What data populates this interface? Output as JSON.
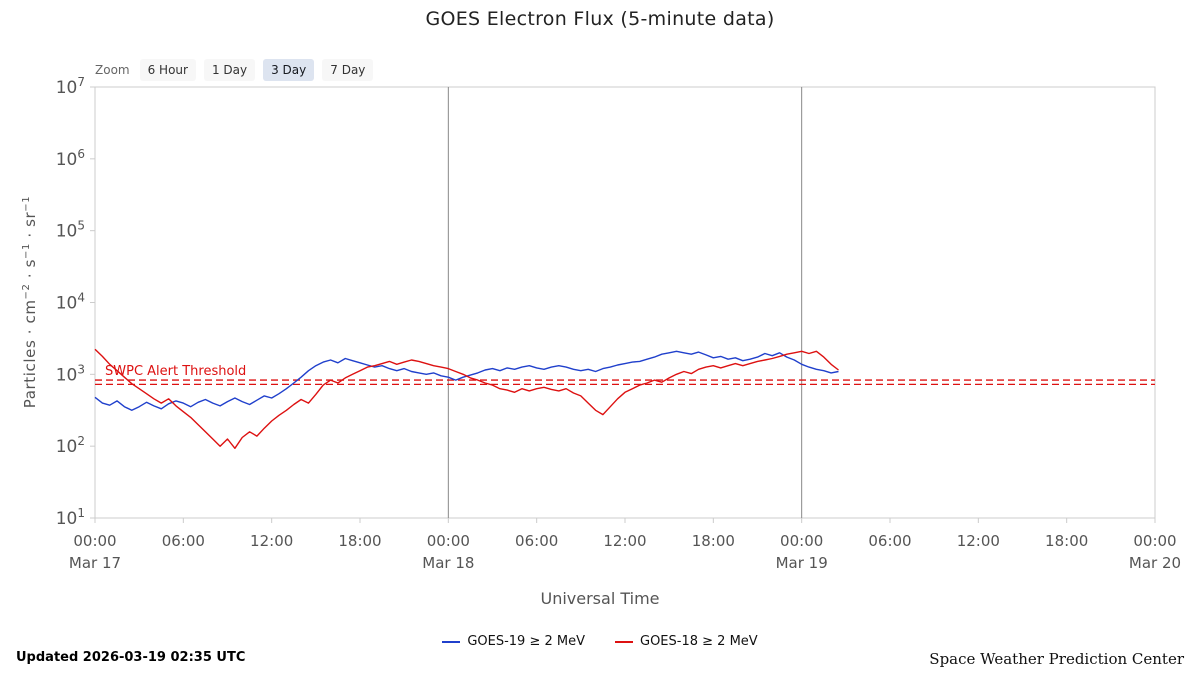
{
  "header": {
    "title": "GOES Electron Flux (5-minute data)"
  },
  "zoom": {
    "label": "Zoom",
    "buttons": [
      {
        "label": "6 Hour",
        "active": false
      },
      {
        "label": "1 Day",
        "active": false
      },
      {
        "label": "3 Day",
        "active": true
      },
      {
        "label": "7 Day",
        "active": false
      }
    ]
  },
  "y_axis_label_parts": {
    "p1": "Particles · cm",
    "e1": "−2",
    "p2": " · s",
    "e2": "−1",
    "p3": " · sr",
    "e3": "−1"
  },
  "footer": {
    "updated": "Updated 2026-03-19 02:35 UTC",
    "credit": "Space Weather Prediction Center"
  },
  "chart_data": {
    "type": "line",
    "title": "GOES Electron Flux (5-minute data)",
    "xlabel": "Universal Time",
    "x_range_hours": [
      0,
      72
    ],
    "x_epoch": "Mar 17 00:00 UTC",
    "y_scale": "log10",
    "y_exponent_range": [
      1,
      7
    ],
    "grid": "off",
    "legend_position": "bottom-center",
    "y_ticks_exponents": [
      1,
      2,
      3,
      4,
      5,
      6,
      7
    ],
    "x_ticks": [
      {
        "hour": 0,
        "time": "00:00",
        "date": "Mar 17"
      },
      {
        "hour": 6,
        "time": "06:00",
        "date": ""
      },
      {
        "hour": 12,
        "time": "12:00",
        "date": ""
      },
      {
        "hour": 18,
        "time": "18:00",
        "date": ""
      },
      {
        "hour": 24,
        "time": "00:00",
        "date": "Mar 18"
      },
      {
        "hour": 30,
        "time": "06:00",
        "date": ""
      },
      {
        "hour": 36,
        "time": "12:00",
        "date": ""
      },
      {
        "hour": 42,
        "time": "18:00",
        "date": ""
      },
      {
        "hour": 48,
        "time": "00:00",
        "date": "Mar 19"
      },
      {
        "hour": 54,
        "time": "06:00",
        "date": ""
      },
      {
        "hour": 60,
        "time": "12:00",
        "date": ""
      },
      {
        "hour": 66,
        "time": "18:00",
        "date": ""
      },
      {
        "hour": 72,
        "time": "00:00",
        "date": "Mar 20"
      }
    ],
    "day_boundaries_hours": [
      24,
      48
    ],
    "threshold": {
      "label": "SWPC Alert Threshold",
      "color": "#dd1111",
      "log_values": [
        2.92,
        2.86
      ]
    },
    "series": [
      {
        "id": "goes-19",
        "name": "GOES-19 ≥ 2 MeV",
        "color": "#2040cc",
        "points_t_log10flux": [
          [
            0,
            2.68
          ],
          [
            0.5,
            2.6
          ],
          [
            1,
            2.57
          ],
          [
            1.5,
            2.63
          ],
          [
            2,
            2.55
          ],
          [
            2.5,
            2.5
          ],
          [
            3,
            2.55
          ],
          [
            3.5,
            2.61
          ],
          [
            4,
            2.56
          ],
          [
            4.5,
            2.52
          ],
          [
            5,
            2.59
          ],
          [
            5.5,
            2.63
          ],
          [
            6,
            2.6
          ],
          [
            6.5,
            2.55
          ],
          [
            7,
            2.61
          ],
          [
            7.5,
            2.65
          ],
          [
            8,
            2.6
          ],
          [
            8.5,
            2.56
          ],
          [
            9,
            2.62
          ],
          [
            9.5,
            2.67
          ],
          [
            10,
            2.62
          ],
          [
            10.5,
            2.58
          ],
          [
            11,
            2.64
          ],
          [
            11.5,
            2.7
          ],
          [
            12,
            2.67
          ],
          [
            12.5,
            2.73
          ],
          [
            13,
            2.8
          ],
          [
            13.5,
            2.88
          ],
          [
            14,
            2.96
          ],
          [
            14.5,
            3.05
          ],
          [
            15,
            3.12
          ],
          [
            15.5,
            3.17
          ],
          [
            16,
            3.2
          ],
          [
            16.5,
            3.16
          ],
          [
            17,
            3.22
          ],
          [
            17.5,
            3.19
          ],
          [
            18,
            3.16
          ],
          [
            18.5,
            3.13
          ],
          [
            19,
            3.1
          ],
          [
            19.5,
            3.12
          ],
          [
            20,
            3.08
          ],
          [
            20.5,
            3.05
          ],
          [
            21,
            3.08
          ],
          [
            21.5,
            3.04
          ],
          [
            22,
            3.02
          ],
          [
            22.5,
            3.0
          ],
          [
            23,
            3.02
          ],
          [
            23.5,
            2.98
          ],
          [
            24,
            2.96
          ],
          [
            24.5,
            2.92
          ],
          [
            25,
            2.96
          ],
          [
            25.5,
            2.99
          ],
          [
            26,
            3.02
          ],
          [
            26.5,
            3.06
          ],
          [
            27,
            3.08
          ],
          [
            27.5,
            3.05
          ],
          [
            28,
            3.09
          ],
          [
            28.5,
            3.07
          ],
          [
            29,
            3.1
          ],
          [
            29.5,
            3.12
          ],
          [
            30,
            3.09
          ],
          [
            30.5,
            3.07
          ],
          [
            31,
            3.1
          ],
          [
            31.5,
            3.12
          ],
          [
            32,
            3.1
          ],
          [
            32.5,
            3.07
          ],
          [
            33,
            3.05
          ],
          [
            33.5,
            3.07
          ],
          [
            34,
            3.04
          ],
          [
            34.5,
            3.08
          ],
          [
            35,
            3.1
          ],
          [
            35.5,
            3.13
          ],
          [
            36,
            3.15
          ],
          [
            36.5,
            3.17
          ],
          [
            37,
            3.18
          ],
          [
            37.5,
            3.21
          ],
          [
            38,
            3.24
          ],
          [
            38.5,
            3.28
          ],
          [
            39,
            3.3
          ],
          [
            39.5,
            3.32
          ],
          [
            40,
            3.3
          ],
          [
            40.5,
            3.28
          ],
          [
            41,
            3.31
          ],
          [
            41.5,
            3.27
          ],
          [
            42,
            3.23
          ],
          [
            42.5,
            3.25
          ],
          [
            43,
            3.21
          ],
          [
            43.5,
            3.23
          ],
          [
            44,
            3.19
          ],
          [
            44.5,
            3.21
          ],
          [
            45,
            3.24
          ],
          [
            45.5,
            3.29
          ],
          [
            46,
            3.26
          ],
          [
            46.5,
            3.3
          ],
          [
            47,
            3.24
          ],
          [
            47.5,
            3.2
          ],
          [
            48,
            3.14
          ],
          [
            48.5,
            3.1
          ],
          [
            49,
            3.07
          ],
          [
            49.5,
            3.05
          ],
          [
            50,
            3.02
          ],
          [
            50.5,
            3.04
          ]
        ]
      },
      {
        "id": "goes-18",
        "name": "GOES-18 ≥ 2 MeV",
        "color": "#dd1111",
        "points_t_log10flux": [
          [
            0,
            3.35
          ],
          [
            0.5,
            3.25
          ],
          [
            1,
            3.14
          ],
          [
            1.5,
            3.05
          ],
          [
            2,
            2.96
          ],
          [
            2.5,
            2.87
          ],
          [
            3,
            2.8
          ],
          [
            3.5,
            2.73
          ],
          [
            4,
            2.66
          ],
          [
            4.5,
            2.6
          ],
          [
            5,
            2.66
          ],
          [
            5.5,
            2.56
          ],
          [
            6,
            2.48
          ],
          [
            6.5,
            2.4
          ],
          [
            7,
            2.3
          ],
          [
            7.5,
            2.2
          ],
          [
            8,
            2.1
          ],
          [
            8.5,
            2.0
          ],
          [
            9,
            2.1
          ],
          [
            9.5,
            1.97
          ],
          [
            10,
            2.12
          ],
          [
            10.5,
            2.2
          ],
          [
            11,
            2.14
          ],
          [
            11.5,
            2.25
          ],
          [
            12,
            2.35
          ],
          [
            12.5,
            2.43
          ],
          [
            13,
            2.5
          ],
          [
            13.5,
            2.58
          ],
          [
            14,
            2.65
          ],
          [
            14.5,
            2.6
          ],
          [
            15,
            2.72
          ],
          [
            15.5,
            2.85
          ],
          [
            16,
            2.92
          ],
          [
            16.5,
            2.88
          ],
          [
            17,
            2.95
          ],
          [
            17.5,
            3.0
          ],
          [
            18,
            3.05
          ],
          [
            18.5,
            3.1
          ],
          [
            19,
            3.12
          ],
          [
            19.5,
            3.15
          ],
          [
            20,
            3.18
          ],
          [
            20.5,
            3.14
          ],
          [
            21,
            3.17
          ],
          [
            21.5,
            3.2
          ],
          [
            22,
            3.18
          ],
          [
            22.5,
            3.15
          ],
          [
            23,
            3.12
          ],
          [
            23.5,
            3.1
          ],
          [
            24,
            3.08
          ],
          [
            24.5,
            3.04
          ],
          [
            25,
            3.0
          ],
          [
            25.5,
            2.95
          ],
          [
            26,
            2.92
          ],
          [
            26.5,
            2.88
          ],
          [
            27,
            2.85
          ],
          [
            27.5,
            2.8
          ],
          [
            28,
            2.78
          ],
          [
            28.5,
            2.75
          ],
          [
            29,
            2.8
          ],
          [
            29.5,
            2.77
          ],
          [
            30,
            2.8
          ],
          [
            30.5,
            2.82
          ],
          [
            31,
            2.79
          ],
          [
            31.5,
            2.77
          ],
          [
            32,
            2.8
          ],
          [
            32.5,
            2.74
          ],
          [
            33,
            2.7
          ],
          [
            33.5,
            2.6
          ],
          [
            34,
            2.5
          ],
          [
            34.5,
            2.44
          ],
          [
            35,
            2.55
          ],
          [
            35.5,
            2.66
          ],
          [
            36,
            2.75
          ],
          [
            36.5,
            2.8
          ],
          [
            37,
            2.85
          ],
          [
            37.5,
            2.88
          ],
          [
            38,
            2.92
          ],
          [
            38.5,
            2.89
          ],
          [
            39,
            2.95
          ],
          [
            39.5,
            3.0
          ],
          [
            40,
            3.04
          ],
          [
            40.5,
            3.01
          ],
          [
            41,
            3.07
          ],
          [
            41.5,
            3.1
          ],
          [
            42,
            3.12
          ],
          [
            42.5,
            3.09
          ],
          [
            43,
            3.12
          ],
          [
            43.5,
            3.15
          ],
          [
            44,
            3.12
          ],
          [
            44.5,
            3.15
          ],
          [
            45,
            3.18
          ],
          [
            45.5,
            3.2
          ],
          [
            46,
            3.22
          ],
          [
            46.5,
            3.25
          ],
          [
            47,
            3.28
          ],
          [
            47.5,
            3.3
          ],
          [
            48,
            3.32
          ],
          [
            48.5,
            3.29
          ],
          [
            49,
            3.32
          ],
          [
            49.5,
            3.24
          ],
          [
            50,
            3.14
          ],
          [
            50.5,
            3.06
          ]
        ]
      }
    ]
  }
}
